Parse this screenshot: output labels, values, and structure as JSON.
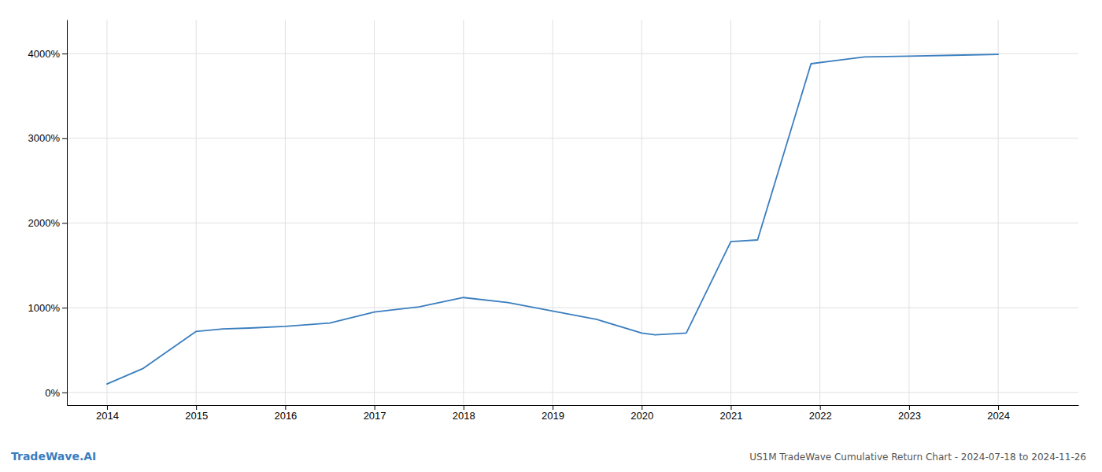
{
  "chart_data": {
    "type": "line",
    "title": "US1M TradeWave Cumulative Return Chart - 2024-07-18 to 2024-11-26",
    "annotations": [
      "TradeWave.AI"
    ],
    "color": "#3a7ebf",
    "x": [
      2014.0,
      2014.4,
      2015.0,
      2015.3,
      2015.6,
      2016.0,
      2016.5,
      2017.0,
      2017.5,
      2018.0,
      2018.5,
      2019.0,
      2019.5,
      2020.0,
      2020.15,
      2020.5,
      2021.0,
      2021.3,
      2021.9,
      2022.2,
      2022.5,
      2023.0,
      2023.5,
      2024.0
    ],
    "values": [
      100,
      280,
      720,
      750,
      760,
      780,
      820,
      950,
      1010,
      1120,
      1060,
      960,
      860,
      700,
      680,
      700,
      1780,
      1800,
      3880,
      3920,
      3960,
      3970,
      3980,
      3990
    ],
    "xlim": [
      2013.55,
      2024.9
    ],
    "xticks": [
      2014,
      2015,
      2016,
      2017,
      2018,
      2019,
      2020,
      2021,
      2022,
      2023,
      2024
    ],
    "ylim": [
      -150,
      4400
    ],
    "yticks": [
      {
        "value": 0,
        "label": "0%"
      },
      {
        "value": 1000,
        "label": "1000%"
      },
      {
        "value": 2000,
        "label": "2000%"
      },
      {
        "value": 3000,
        "label": "3000%"
      },
      {
        "value": 4000,
        "label": "4000%"
      }
    ],
    "grid": true
  }
}
